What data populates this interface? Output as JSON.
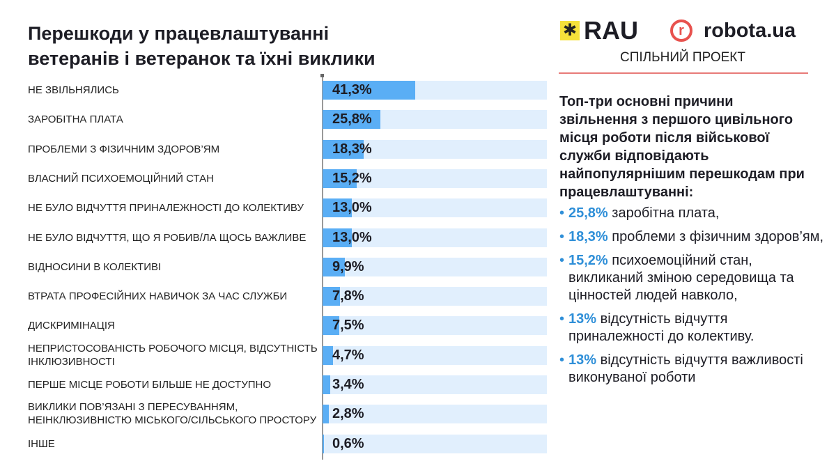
{
  "title": "Перешкоди у працевлаштуванні ветеранів і ветеранок та їхні виклики",
  "logos": {
    "rau": "RAU",
    "robota": "robota.ua",
    "robota_mark": "r",
    "joint": "СПІЛЬНИЙ ПРОЕКТ"
  },
  "summary": "Топ-три основні причини звільнення з першого цивільного місця роботи після військової служби відповідають найпопулярнішим перешкодам при працевлаштуванні:",
  "bullets": [
    {
      "pct": "25,8%",
      "text": "заробітна плата,"
    },
    {
      "pct": "18,3%",
      "text": "проблеми з фізичним здоров’ям,"
    },
    {
      "pct": "15,2%",
      "text": "психоемоційний стан, викликаний зміною середовища та цінностей людей навколо,"
    },
    {
      "pct": "13%",
      "text": "відсутність відчуття приналежності до колективу."
    },
    {
      "pct": "13%",
      "text": "відсутність відчуття важливості виконуваної роботи"
    }
  ],
  "colors": {
    "fill": "#5aaef5",
    "track": "#e1effd",
    "accent": "#2f8fd8"
  },
  "chart_data": {
    "type": "bar",
    "orientation": "horizontal",
    "xlim": [
      0,
      100
    ],
    "categories": [
      "Не звільнялись",
      "Заробітна плата",
      "Проблеми з фізичним здоров’ям",
      "Власний психоемоційний стан",
      "Не було відчуття приналежності до колективу",
      "Не було відчуття, що я робив/ла щось важливе",
      "Відносини в колективі",
      "Втрата професійних навичок за час служби",
      "Дискримінація",
      "Непристосованість робочого місця, відсутність інклюзивності",
      "Перше місце роботи більше не доступно",
      "Виклики пов’язані з пересуванням, неінклюзивністю міського/сільського простору",
      "Інше"
    ],
    "values": [
      41.3,
      25.8,
      18.3,
      15.2,
      13.0,
      13.0,
      9.9,
      7.8,
      7.5,
      4.7,
      3.4,
      2.8,
      0.6
    ],
    "labels": [
      "41,3%",
      "25,8%",
      "18,3%",
      "15,2%",
      "13,0%",
      "13,0%",
      "9,9%",
      "7,8%",
      "7,5%",
      "4,7%",
      "3,4%",
      "2,8%",
      "0,6%"
    ]
  }
}
